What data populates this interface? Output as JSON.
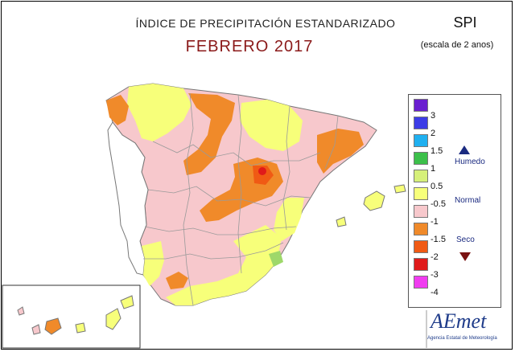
{
  "header": {
    "title": "ÍNDICE DE PRECIPITACIÓN ESTANDARIZADO",
    "month": "FEBRERO 2017",
    "index_name": "SPI",
    "scale_note": "(escala de 2 anos)"
  },
  "legend": {
    "items": [
      {
        "label": "3",
        "color": "#6a1fd0"
      },
      {
        "label": "2",
        "color": "#3c3ce6"
      },
      {
        "label": "1.5",
        "color": "#1fb0f0"
      },
      {
        "label": "1",
        "color": "#3cc04a"
      },
      {
        "label": "0.5",
        "color": "#d6f07a"
      },
      {
        "label": "-0.5",
        "color": "#f7ff7a"
      },
      {
        "label": "-1",
        "color": "#f7c8cc"
      },
      {
        "label": "-1.5",
        "color": "#f08a2a"
      },
      {
        "label": "-2",
        "color": "#f05a14"
      },
      {
        "label": "-3",
        "color": "#e01a1a"
      },
      {
        "label": "-4",
        "color": "#f03cf0"
      },
      {
        "label": "",
        "color": "#c060f0"
      }
    ],
    "categories": {
      "wet": "Humedo",
      "normal": "Normal",
      "dry": "Seco"
    }
  },
  "logo": {
    "name": "AEmet",
    "subtitle": "Agencia Estatal de Meteorología"
  }
}
